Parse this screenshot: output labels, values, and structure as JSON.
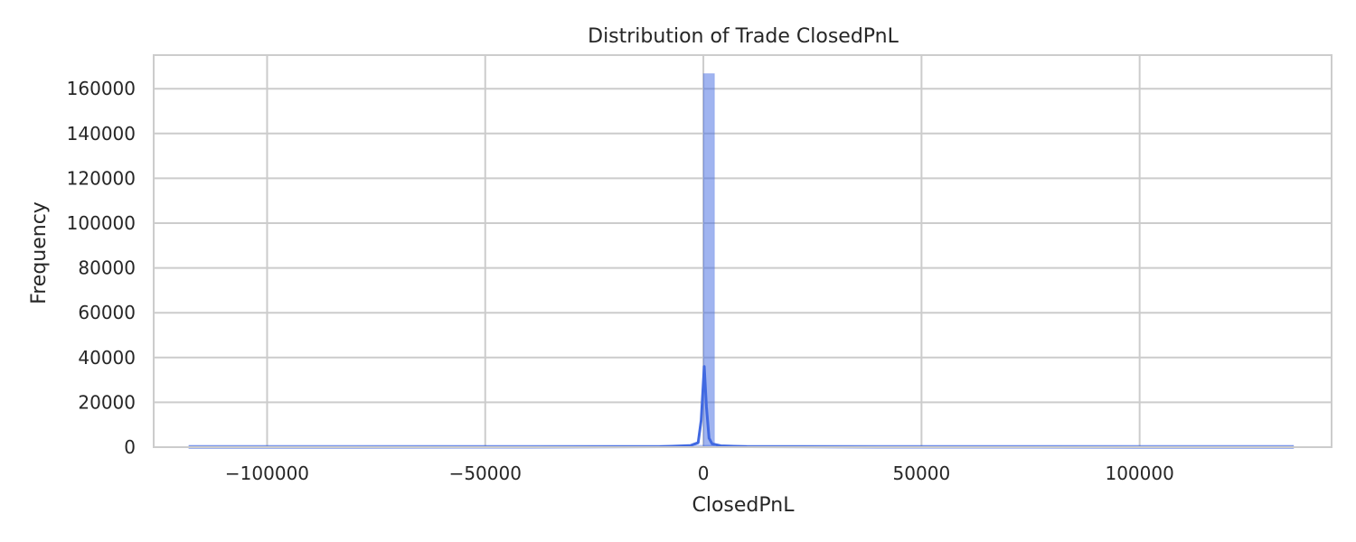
{
  "chart_data": {
    "type": "bar",
    "title": "Distribution of Trade ClosedPnL",
    "xlabel": "ClosedPnL",
    "ylabel": "Frequency",
    "xlim": [
      -126000,
      144000
    ],
    "ylim": [
      0,
      175000
    ],
    "xticks": [
      -100000,
      -50000,
      0,
      50000,
      100000
    ],
    "xtick_labels": [
      "−100000",
      "−50000",
      "0",
      "50000",
      "100000"
    ],
    "yticks": [
      0,
      20000,
      40000,
      60000,
      80000,
      100000,
      120000,
      140000,
      160000
    ],
    "ytick_labels": [
      "0",
      "20000",
      "40000",
      "60000",
      "80000",
      "100000",
      "120000",
      "140000",
      "160000"
    ],
    "grid": true,
    "histogram": {
      "bin_range": [
        -117990,
        135330
      ],
      "bins": 100,
      "bars": [
        {
          "x_start": -117990,
          "x_end": -115457,
          "count": 1
        },
        {
          "x_start": -1,
          "x_end": 2532,
          "count": 166700
        },
        {
          "x_start": 132797,
          "x_end": 135330,
          "count": 1
        }
      ]
    },
    "kde": {
      "x": [
        -117990,
        -40000,
        -10000,
        -3000,
        -1200,
        -500,
        200,
        700,
        1300,
        2000,
        4000,
        10000,
        40000,
        135330
      ],
      "y": [
        0,
        50,
        200,
        700,
        2000,
        12000,
        36000,
        18000,
        4000,
        1500,
        600,
        200,
        50,
        0
      ]
    },
    "colors": {
      "bar_fill": "#4169e1",
      "bar_opacity": 0.5,
      "kde_line": "#4169e1",
      "grid": "#cccccc",
      "spine": "#cccccc"
    }
  }
}
